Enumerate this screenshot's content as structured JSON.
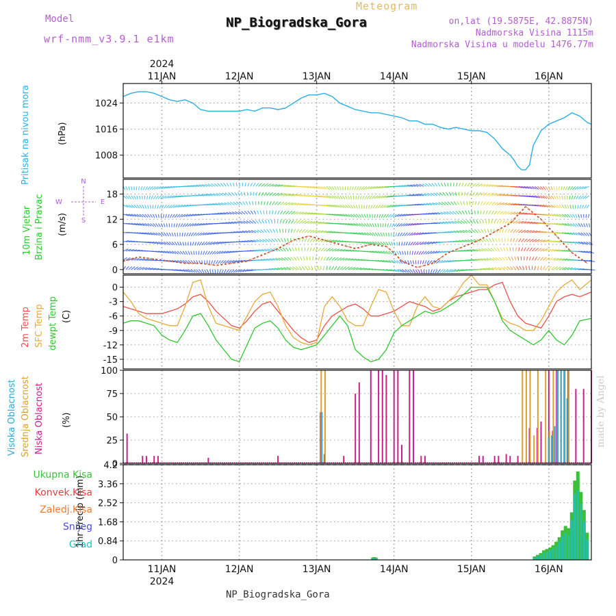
{
  "header": {
    "meteogram_label": "Meteogram",
    "station_title": "NP_Biogradska_Gora",
    "model_label": "Model",
    "model_name": "wrf-nmm_v3.9.1 e1km",
    "coords": "on,lat (19.5875E, 42.8875N)",
    "elevation": "Nadmorska Visina 1115m",
    "model_elevation": "Nadmorska Visina u modelu 1476.77m",
    "year_top": "2024",
    "year_bottom": "2024",
    "bottom_station": "NP_Biogradska_Gora",
    "watermark": "made by Angel"
  },
  "colors": {
    "pressure": "#29aee8",
    "temp2m": "#e8504a",
    "sfc": "#e8a83a",
    "dewpt": "#2ec82e",
    "high_cloud": "#2aa9d9",
    "mid_cloud": "#d8a030",
    "low_cloud": "#c8208a",
    "total_precip": "#3cbf3c",
    "conv_precip": "#e04040",
    "frozen_precip": "#f07a30",
    "snow": "#4a4ae0",
    "graupel": "#20c0c0",
    "model_text": "#b45cd6"
  },
  "chart_data": [
    {
      "type": "line",
      "panel": "pressure",
      "ylabel_side": "Pritisak na nivou mora",
      "units": "(hPa)",
      "ylim": [
        1001,
        1030
      ],
      "yticks": [
        1008,
        1016,
        1024
      ],
      "ytick_labels": [
        "1008",
        "1016",
        "1024"
      ],
      "x_dates": [
        "11JAN",
        "12JAN",
        "13JAN",
        "14JAN",
        "15JAN",
        "16JAN"
      ],
      "x_range_days": [
        -0.5,
        5.55
      ],
      "grid": true,
      "series": [
        {
          "x": [
            -0.5,
            -0.4,
            -0.3,
            -0.2,
            -0.1,
            0.0,
            0.1,
            0.2,
            0.3,
            0.4,
            0.5,
            0.6,
            0.7,
            0.8,
            0.9,
            1.0,
            1.1,
            1.2,
            1.3,
            1.4,
            1.5,
            1.6,
            1.7,
            1.8,
            1.9,
            2.0,
            2.1,
            2.2,
            2.3,
            2.4,
            2.5,
            2.6,
            2.7,
            2.8,
            2.9,
            3.0,
            3.1,
            3.2,
            3.3,
            3.4,
            3.5,
            3.6,
            3.7,
            3.8,
            3.9,
            4.0,
            4.1,
            4.2,
            4.3,
            4.4,
            4.5,
            4.55,
            4.6,
            4.65,
            4.7,
            4.75,
            4.8,
            4.9,
            5.0,
            5.1,
            5.2,
            5.3,
            5.4,
            5.5,
            5.55
          ],
          "y": [
            1026,
            1027,
            1027.5,
            1027.5,
            1027,
            1026,
            1025,
            1024.5,
            1025,
            1024,
            1022,
            1021.5,
            1021.5,
            1021.5,
            1021.5,
            1021.5,
            1022,
            1021.5,
            1022.5,
            1022.5,
            1022,
            1022.5,
            1024,
            1025.5,
            1026.5,
            1026.5,
            1027,
            1026,
            1024,
            1023,
            1022,
            1021.5,
            1021,
            1021,
            1020.5,
            1020,
            1019.5,
            1018.5,
            1018.5,
            1017.5,
            1017.5,
            1016.5,
            1016,
            1016.5,
            1016,
            1015.5,
            1015.5,
            1015,
            1013,
            1010,
            1008,
            1006.5,
            1004.5,
            1003.5,
            1003.5,
            1005,
            1011,
            1015.5,
            1017.5,
            1018.5,
            1019.5,
            1021,
            1020,
            1018,
            1017.5
          ]
        }
      ]
    },
    {
      "type": "line",
      "panel": "wind",
      "ylabel_side": "10m Vjetar Brzina i Pravac",
      "units": "(m/s)",
      "compass": [
        "N",
        "E",
        "W",
        "S"
      ],
      "ylim": [
        -1,
        21.5
      ],
      "yticks": [
        0,
        6,
        12,
        18
      ],
      "ytick_labels": [
        "0",
        "6",
        "12",
        "18"
      ],
      "grid": true,
      "series": [
        {
          "name": "speed",
          "x": [
            -0.5,
            -0.3,
            -0.1,
            0.1,
            0.3,
            0.5,
            0.7,
            0.9,
            1.1,
            1.3,
            1.5,
            1.7,
            1.9,
            2.1,
            2.3,
            2.5,
            2.7,
            2.9,
            3.0,
            3.1,
            3.3,
            3.5,
            3.7,
            3.9,
            4.1,
            4.3,
            4.5,
            4.7,
            4.9,
            5.1,
            5.3,
            5.5
          ],
          "y": [
            2,
            3,
            2.5,
            2,
            1.5,
            1.5,
            1,
            1.5,
            2,
            3.5,
            5,
            7,
            8,
            7,
            6,
            5,
            6,
            5.5,
            4,
            2,
            0.5,
            1.5,
            4,
            5.5,
            7,
            9,
            11,
            15,
            12,
            8,
            4,
            1.5
          ]
        }
      ]
    },
    {
      "type": "line",
      "panel": "temperature",
      "ylabel_side": "2m Temp / SFC Temp / dewpt Temp",
      "side_labels": [
        "2m Temp",
        "SFC Temp",
        "dewpt Temp"
      ],
      "units": "(C)",
      "ylim": [
        -17,
        2.5
      ],
      "yticks": [
        -15,
        -12,
        -9,
        -6,
        -3,
        0
      ],
      "ytick_labels": [
        "-15",
        "-12",
        "-9",
        "-6",
        "-3",
        "0"
      ],
      "grid": true,
      "series": [
        {
          "name": "2m Temp",
          "x": [
            -0.5,
            -0.4,
            -0.3,
            -0.2,
            -0.1,
            0.0,
            0.1,
            0.2,
            0.3,
            0.4,
            0.5,
            0.6,
            0.7,
            0.8,
            0.9,
            1.0,
            1.1,
            1.2,
            1.3,
            1.4,
            1.5,
            1.6,
            1.7,
            1.8,
            1.9,
            2.0,
            2.1,
            2.2,
            2.3,
            2.4,
            2.5,
            2.6,
            2.7,
            2.8,
            2.9,
            3.0,
            3.1,
            3.2,
            3.3,
            3.4,
            3.5,
            3.6,
            3.7,
            3.8,
            3.9,
            4.0,
            4.1,
            4.2,
            4.3,
            4.4,
            4.5,
            4.6,
            4.7,
            4.8,
            4.9,
            5.0,
            5.1,
            5.2,
            5.3,
            5.4,
            5.55
          ],
          "y": [
            -4,
            -4.5,
            -5,
            -5.5,
            -5.5,
            -5.5,
            -5,
            -4.5,
            -3.5,
            -2,
            -1.5,
            -3,
            -5,
            -6.5,
            -8,
            -8.5,
            -7,
            -5,
            -3.5,
            -3,
            -5,
            -7,
            -9,
            -10.5,
            -11.5,
            -11,
            -8,
            -6,
            -5,
            -4,
            -3.5,
            -4.5,
            -6,
            -6,
            -5.5,
            -5,
            -4,
            -3,
            -3.5,
            -4,
            -5,
            -4.5,
            -3,
            -2,
            -1.5,
            -1,
            -0.5,
            -0.5,
            0.5,
            1,
            -3,
            -6,
            -7.5,
            -8,
            -8.5,
            -6,
            -3,
            -2,
            -1.5,
            -2,
            -1
          ]
        },
        {
          "name": "SFC Temp",
          "x": [
            -0.5,
            -0.4,
            -0.3,
            -0.2,
            -0.1,
            0.0,
            0.1,
            0.2,
            0.3,
            0.4,
            0.5,
            0.6,
            0.7,
            0.8,
            0.9,
            1.0,
            1.1,
            1.2,
            1.3,
            1.4,
            1.5,
            1.6,
            1.7,
            1.8,
            1.9,
            2.0,
            2.1,
            2.2,
            2.3,
            2.4,
            2.5,
            2.6,
            2.7,
            2.8,
            2.9,
            3.0,
            3.1,
            3.2,
            3.3,
            3.4,
            3.5,
            3.6,
            3.7,
            3.8,
            3.9,
            4.0,
            4.1,
            4.2,
            4.3,
            4.4,
            4.5,
            4.6,
            4.7,
            4.8,
            4.9,
            5.0,
            5.1,
            5.2,
            5.3,
            5.4,
            5.55
          ],
          "y": [
            -1,
            -3,
            -5.5,
            -6.5,
            -7,
            -7.5,
            -8,
            -8,
            -4,
            1,
            1.5,
            -4,
            -7.5,
            -8,
            -8.5,
            -9,
            -6,
            -3,
            -1.5,
            -1,
            -4,
            -8,
            -10.5,
            -11.5,
            -12,
            -11.5,
            -4,
            -2,
            -4,
            -7,
            -8,
            -8,
            -4,
            -0.5,
            -1,
            -5,
            -8,
            -8,
            -4,
            -2,
            -4,
            -4.5,
            -3,
            -1.5,
            1,
            2.5,
            0.5,
            0.5,
            -3,
            -6.5,
            -7.5,
            -8,
            -9,
            -9,
            -7,
            -4,
            -1,
            0.5,
            1.5,
            -0.5,
            1.5
          ]
        },
        {
          "name": "dewpt Temp",
          "x": [
            -0.5,
            -0.4,
            -0.3,
            -0.2,
            -0.1,
            0.0,
            0.1,
            0.2,
            0.3,
            0.4,
            0.5,
            0.6,
            0.7,
            0.8,
            0.9,
            1.0,
            1.1,
            1.2,
            1.3,
            1.4,
            1.5,
            1.6,
            1.7,
            1.8,
            1.9,
            2.0,
            2.1,
            2.2,
            2.3,
            2.4,
            2.5,
            2.6,
            2.7,
            2.8,
            2.9,
            3.0,
            3.1,
            3.2,
            3.3,
            3.4,
            3.5,
            3.6,
            3.7,
            3.8,
            3.9,
            4.0,
            4.1,
            4.2,
            4.3,
            4.4,
            4.5,
            4.6,
            4.7,
            4.8,
            4.9,
            5.0,
            5.1,
            5.2,
            5.3,
            5.4,
            5.55
          ],
          "y": [
            -7.5,
            -7,
            -7,
            -7.5,
            -8,
            -10,
            -11,
            -11.5,
            -9,
            -6,
            -5.5,
            -8,
            -11,
            -13,
            -15,
            -15.5,
            -12,
            -8.5,
            -7.5,
            -7,
            -8.5,
            -11,
            -12.5,
            -13,
            -12.5,
            -12,
            -10,
            -8,
            -6,
            -8,
            -13,
            -14.5,
            -15.5,
            -15,
            -13,
            -9.5,
            -8,
            -7,
            -6,
            -5,
            -5.5,
            -5,
            -4,
            -3,
            -1.5,
            0,
            0,
            0,
            -3,
            -7,
            -9,
            -10,
            -11,
            -12,
            -11,
            -9,
            -11,
            -12,
            -10,
            -7,
            -6.5
          ]
        }
      ]
    },
    {
      "type": "bar",
      "panel": "cloud",
      "ylabel_side": "Visoka Oblacnost / Srednja Oblacnost / Niska Oblacnost",
      "side_labels": [
        "Visoka Oblacnost",
        "Srednja Oblacnost",
        "Niska Oblacnost"
      ],
      "units": "(%)",
      "ylim": [
        0,
        100
      ],
      "yticks": [
        0,
        25,
        50,
        75,
        100
      ],
      "ytick_labels": [
        "0",
        "25",
        "50",
        "75",
        "100"
      ],
      "grid": true,
      "series": [
        {
          "name": "Niska Oblacnost",
          "x": [
            -0.45,
            -0.25,
            -0.2,
            -0.1,
            -0.05,
            0.6,
            1.5,
            2.05,
            2.1,
            2.35,
            2.5,
            2.55,
            2.7,
            2.8,
            2.85,
            2.9,
            3.0,
            3.05,
            3.1,
            3.2,
            3.25,
            3.35,
            3.4,
            4.1,
            4.15,
            4.3,
            4.35,
            4.45,
            4.5,
            4.6,
            4.75,
            4.85,
            4.9,
            5.0,
            5.05,
            5.1,
            5.2,
            5.25,
            5.35,
            5.45,
            5.55
          ],
          "values": [
            32,
            8,
            8,
            8,
            8,
            6,
            8,
            55,
            10,
            8,
            75,
            87,
            100,
            100,
            100,
            95,
            100,
            100,
            20,
            100,
            100,
            8,
            8,
            8,
            8,
            8,
            8,
            10,
            8,
            8,
            38,
            38,
            45,
            100,
            35,
            100,
            100,
            100,
            80,
            80,
            100
          ]
        },
        {
          "name": "Srednja Oblacnost",
          "x": [
            2.05,
            2.1,
            4.65,
            4.7,
            4.75,
            4.8,
            4.85,
            4.95,
            5.0,
            5.05,
            5.1,
            5.15,
            5.2,
            5.25
          ],
          "values": [
            100,
            100,
            100,
            100,
            100,
            30,
            100,
            100,
            35,
            100,
            100,
            100,
            100,
            100
          ]
        },
        {
          "name": "Visoka Oblacnost",
          "x": [
            2.05,
            4.98,
            5.02,
            5.06,
            5.1,
            5.14,
            5.18,
            5.22
          ],
          "values": [
            55,
            28,
            30,
            40,
            100,
            100,
            100,
            70
          ]
        }
      ]
    },
    {
      "type": "bar",
      "panel": "precipitation",
      "ylabel_side": "1hr Precip (mm)",
      "legend": [
        "Ukupna Kisa",
        "Konvek.Kisa",
        "Zaledj.Kisa",
        "Snijeg",
        "Grad"
      ],
      "units": "(mm)",
      "ylim": [
        0,
        4.2
      ],
      "yticks": [
        0,
        0.84,
        1.68,
        2.52,
        3.36,
        4.2
      ],
      "ytick_labels": [
        "0",
        "0.84",
        "1.68",
        "2.52",
        "3.36",
        "4.2"
      ],
      "x_dates": [
        "11JAN",
        "12JAN",
        "13JAN",
        "14JAN",
        "15JAN",
        "16JAN"
      ],
      "grid": true,
      "series": [
        {
          "name": "Ukupna Kisa",
          "x": [
            2.73,
            2.75,
            2.77,
            4.82,
            4.86,
            4.9,
            4.94,
            4.98,
            5.02,
            5.06,
            5.1,
            5.14,
            5.18,
            5.22,
            5.26,
            5.3,
            5.34,
            5.38,
            5.42,
            5.46,
            5.5
          ],
          "values": [
            0.1,
            0.12,
            0.1,
            0.15,
            0.22,
            0.3,
            0.42,
            0.48,
            0.55,
            0.65,
            0.8,
            1.0,
            1.3,
            1.5,
            1.4,
            2.1,
            3.5,
            3.9,
            3.0,
            2.2,
            1.2
          ]
        },
        {
          "name": "Snijeg",
          "x": [
            2.73,
            2.75,
            2.77,
            4.82,
            4.86,
            4.9,
            4.94,
            4.98,
            5.02,
            5.06,
            5.1,
            5.14,
            5.18,
            5.22,
            5.26,
            5.3,
            5.34,
            5.38,
            5.42,
            5.46,
            5.5
          ],
          "values": [
            0.05,
            0.06,
            0.05,
            0.1,
            0.15,
            0.22,
            0.3,
            0.35,
            0.42,
            0.5,
            0.6,
            0.8,
            1.05,
            1.2,
            1.1,
            1.75,
            2.9,
            3.1,
            2.5,
            1.7,
            0.9
          ]
        }
      ]
    }
  ]
}
